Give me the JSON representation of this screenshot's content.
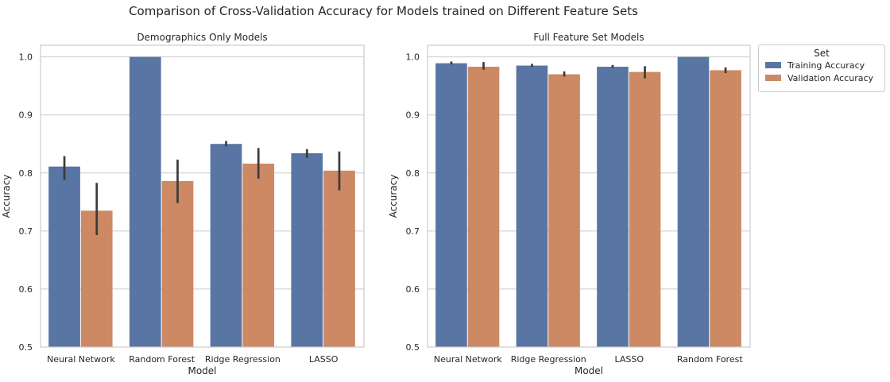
{
  "suptitle": "Comparison of Cross-Validation Accuracy for Models trained on Different Feature Sets",
  "legend": {
    "title": "Set",
    "items": [
      {
        "label": "Training Accuracy",
        "color": "#5875a4"
      },
      {
        "label": "Validation Accuracy",
        "color": "#cc8963"
      }
    ]
  },
  "chart_data": [
    {
      "type": "bar",
      "title": "Demographics Only Models",
      "xlabel": "Model",
      "ylabel": "Accuracy",
      "ylim": [
        0.5,
        1.02
      ],
      "yticks": [
        "0.5",
        "0.6",
        "0.7",
        "0.8",
        "0.9",
        "1.0"
      ],
      "grid": true,
      "categories": [
        "Neural Network",
        "Random Forest",
        "Ridge Regression",
        "LASSO"
      ],
      "series": [
        {
          "name": "Training Accuracy",
          "color": "#5875a4",
          "values": [
            0.811,
            1.0,
            0.85,
            0.834
          ],
          "err_low": [
            0.788,
            1.0,
            0.846,
            0.826
          ],
          "err_high": [
            0.829,
            1.0,
            0.855,
            0.841
          ]
        },
        {
          "name": "Validation Accuracy",
          "color": "#cc8963",
          "values": [
            0.735,
            0.786,
            0.816,
            0.804
          ],
          "err_low": [
            0.693,
            0.748,
            0.79,
            0.77
          ],
          "err_high": [
            0.783,
            0.823,
            0.843,
            0.837
          ]
        }
      ]
    },
    {
      "type": "bar",
      "title": "Full Feature Set Models",
      "xlabel": "Model",
      "ylabel": "Accuracy",
      "ylim": [
        0.5,
        1.02
      ],
      "yticks": [
        "0.5",
        "0.6",
        "0.7",
        "0.8",
        "0.9",
        "1.0"
      ],
      "grid": true,
      "categories": [
        "Neural Network",
        "Ridge Regression",
        "LASSO",
        "Random Forest"
      ],
      "series": [
        {
          "name": "Training Accuracy",
          "color": "#5875a4",
          "values": [
            0.989,
            0.985,
            0.983,
            1.0
          ],
          "err_low": [
            0.987,
            0.983,
            0.981,
            1.0
          ],
          "err_high": [
            0.992,
            0.988,
            0.986,
            1.0
          ]
        },
        {
          "name": "Validation Accuracy",
          "color": "#cc8963",
          "values": [
            0.983,
            0.97,
            0.974,
            0.977
          ],
          "err_low": [
            0.978,
            0.966,
            0.963,
            0.972
          ],
          "err_high": [
            0.991,
            0.975,
            0.984,
            0.982
          ]
        }
      ]
    }
  ]
}
